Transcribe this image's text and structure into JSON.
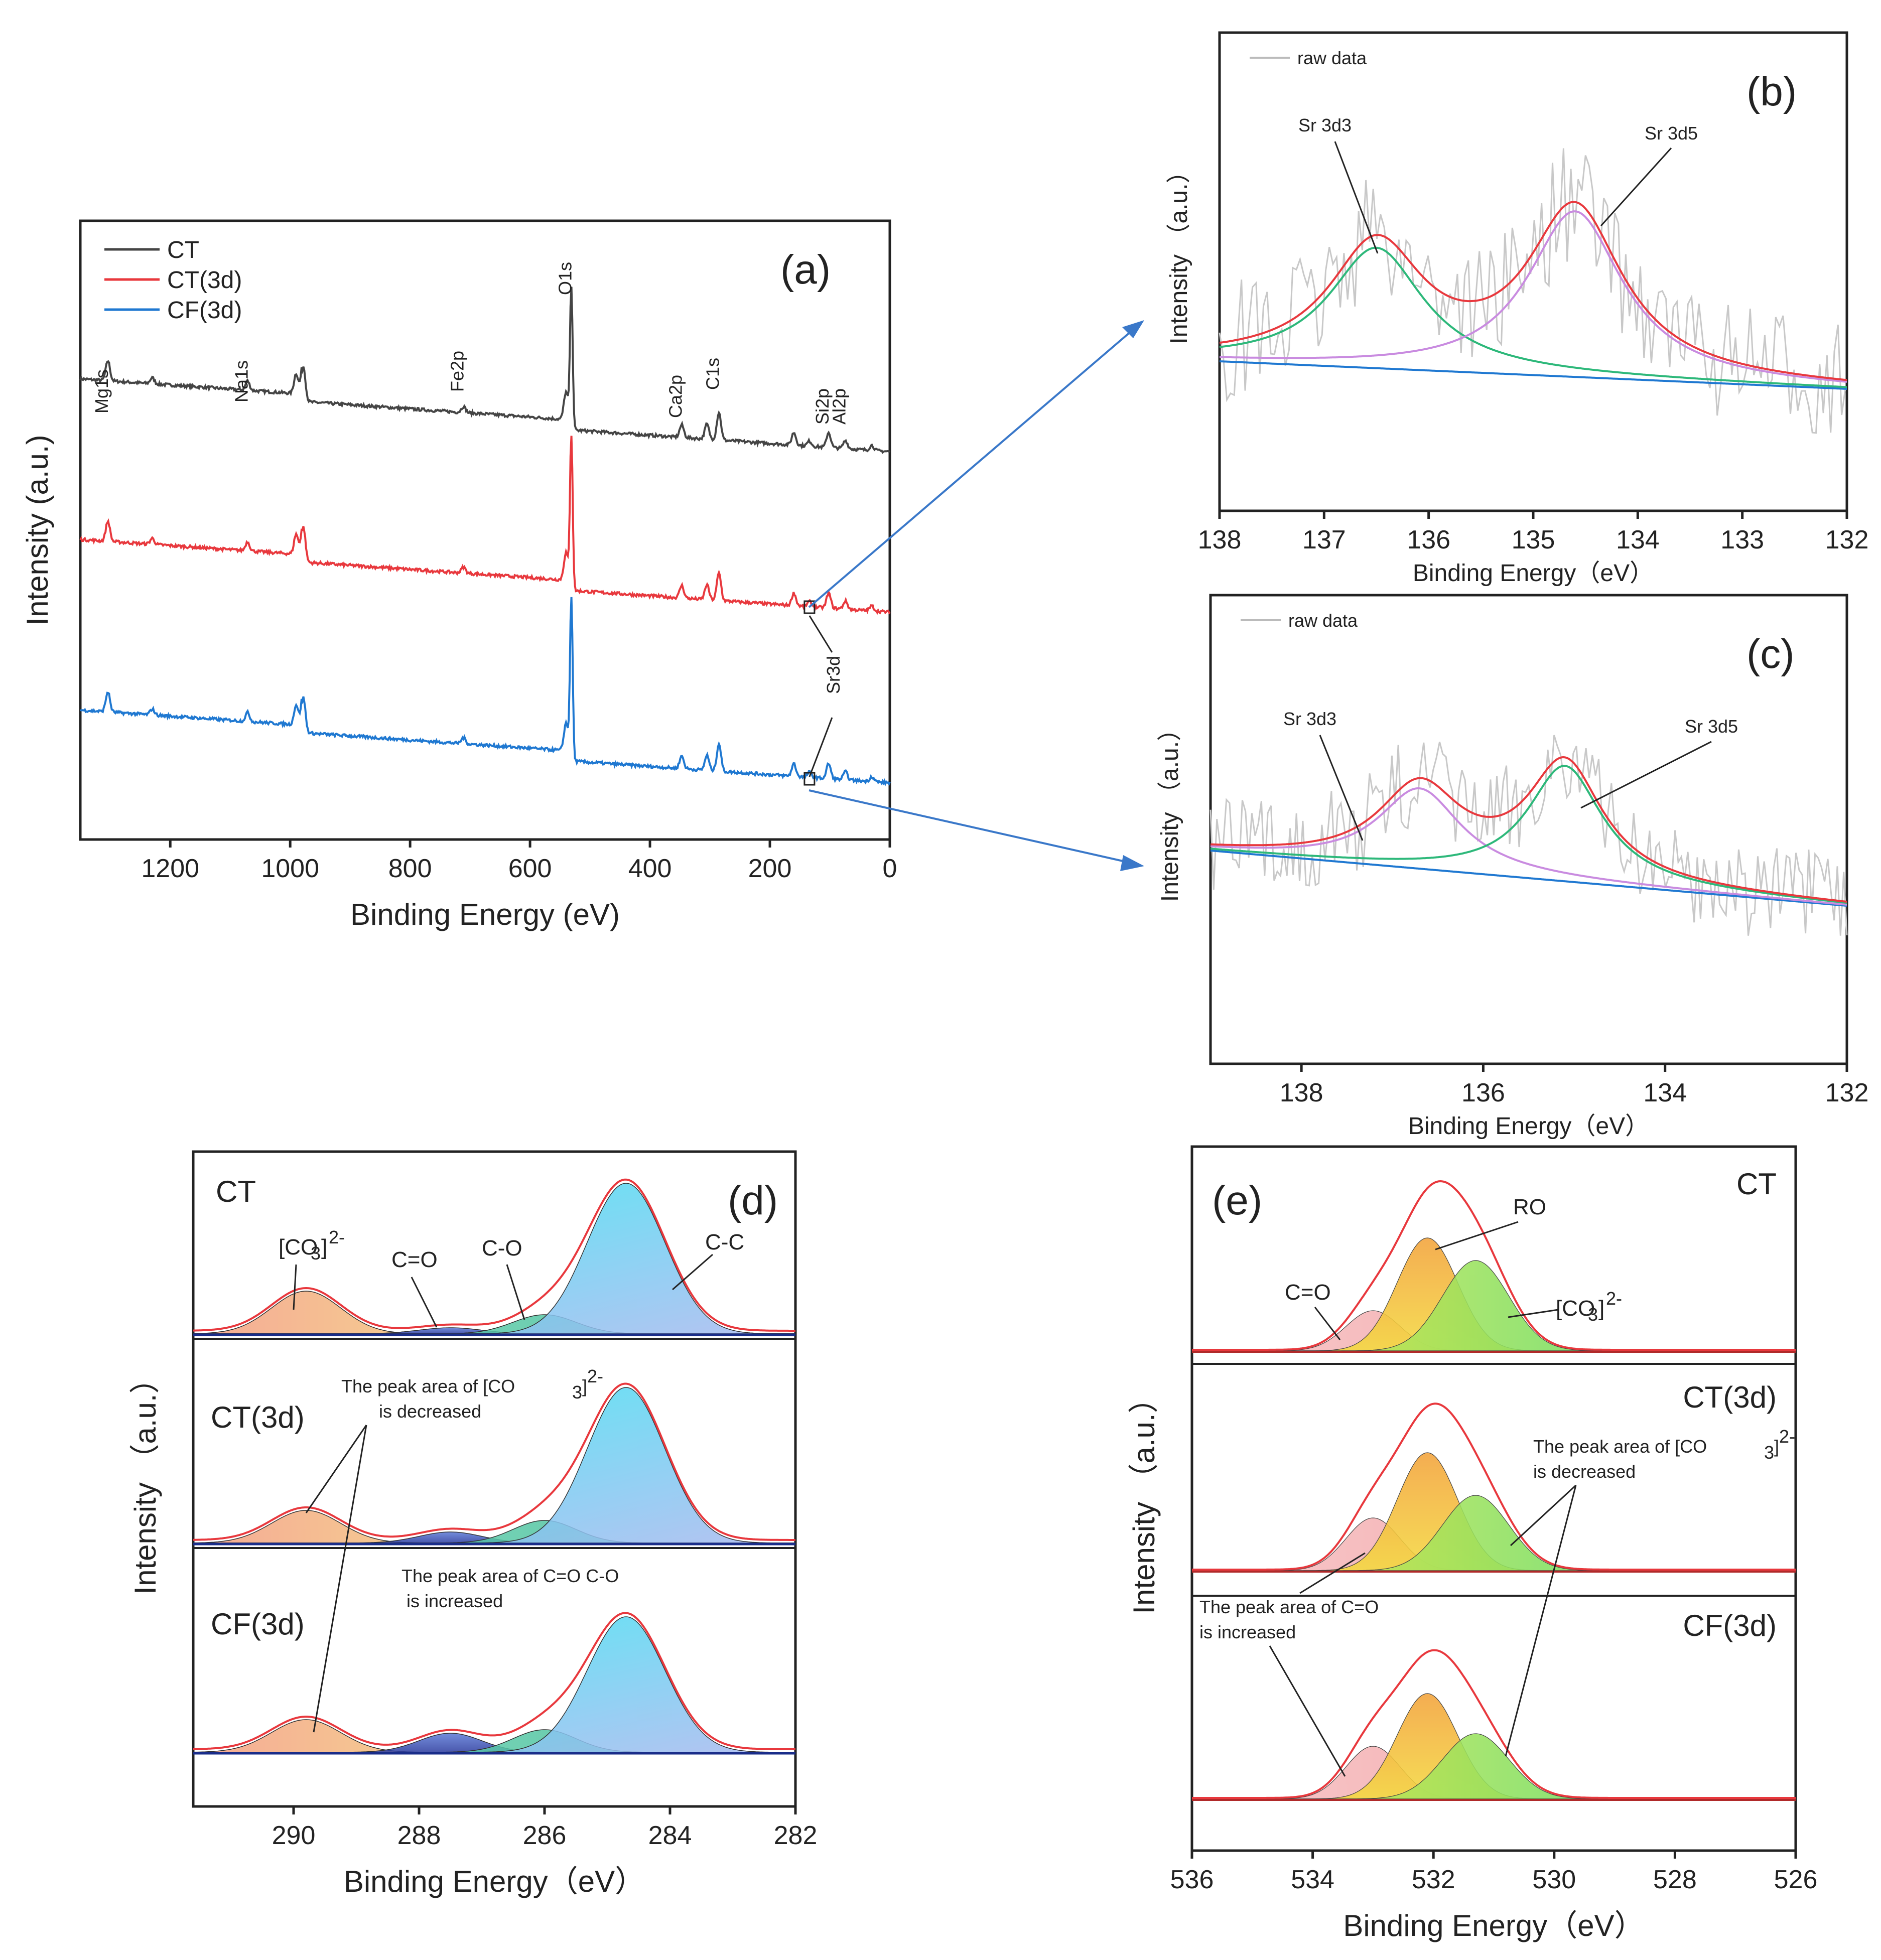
{
  "chart_data": [
    {
      "panel": "a",
      "type": "line",
      "panel_label": "(a)",
      "xlabel": "Binding Energy (eV)",
      "ylabel": "Intensity (a.u.)",
      "xlim": [
        1350,
        0
      ],
      "xticks": [
        1200,
        1000,
        800,
        600,
        400,
        200,
        0
      ],
      "legend": [
        "CT",
        "CT(3d)",
        "CF(3d)"
      ],
      "legend_position": "top-left",
      "colors": [
        "#444444",
        "#e8383d",
        "#1f78d1"
      ],
      "peaks": [
        {
          "label": "Mg1s",
          "x": 1304
        },
        {
          "label": "Na1s",
          "x": 1071
        },
        {
          "label": "Fe2p",
          "x": 711
        },
        {
          "label": "O1s",
          "x": 531
        },
        {
          "label": "Ca2p",
          "x": 347
        },
        {
          "label": "C1s",
          "x": 285
        },
        {
          "label": "Si2p",
          "x": 102
        },
        {
          "label": "Al2p",
          "x": 74
        },
        {
          "label": "Sr3d",
          "x": 134
        }
      ]
    },
    {
      "panel": "b",
      "type": "line",
      "panel_label": "(b)",
      "xlabel": "Binding Energy（eV）",
      "ylabel": "Intensity （a.u.）",
      "xlim": [
        138,
        132
      ],
      "xticks": [
        138,
        137,
        136,
        135,
        134,
        133,
        132
      ],
      "legend": [
        "raw data"
      ],
      "series": [
        {
          "name": "Sr 3d3",
          "center": 136.5,
          "color": "#2db87a"
        },
        {
          "name": "Sr 3d5",
          "center": 134.6,
          "color": "#c98be0"
        },
        {
          "name": "envelope",
          "color": "#e8383d"
        },
        {
          "name": "background",
          "color": "#1f78d1"
        }
      ],
      "annotations": [
        "Sr 3d3",
        "Sr 3d5"
      ]
    },
    {
      "panel": "c",
      "type": "line",
      "panel_label": "(c)",
      "xlabel": "Binding Energy（eV）",
      "ylabel": "Intensity （a.u.）",
      "xlim": [
        139,
        132
      ],
      "xticks": [
        138,
        136,
        134,
        132
      ],
      "legend": [
        "raw data"
      ],
      "series": [
        {
          "name": "Sr 3d3",
          "center": 136.7,
          "color": "#c98be0"
        },
        {
          "name": "Sr 3d5",
          "center": 135.1,
          "color": "#2db87a"
        },
        {
          "name": "envelope",
          "color": "#e8383d"
        },
        {
          "name": "background",
          "color": "#1f78d1"
        }
      ],
      "annotations": [
        "Sr 3d3",
        "Sr 3d5"
      ]
    },
    {
      "panel": "d",
      "type": "area",
      "panel_label": "(d)",
      "xlabel": "Binding Energy（eV）",
      "ylabel": "Intensity （a.u.）",
      "xlim": [
        291.6,
        282
      ],
      "xticks": [
        290,
        288,
        286,
        284,
        282
      ],
      "samples": [
        "CT",
        "CT(3d)",
        "CF(3d)"
      ],
      "components": [
        {
          "name": "[CO3]2-",
          "center": 289.8
        },
        {
          "name": "C=O",
          "center": 287.5
        },
        {
          "name": "C-O",
          "center": 286.0
        },
        {
          "name": "C-C",
          "center": 284.7
        }
      ],
      "annotations": {
        "co3": "[CO",
        "sub3": "3",
        "close": "]",
        "sup": "2-",
        "ceo": "C=O",
        "co": "C-O",
        "cc": "C-C",
        "dec1": "The peak area of [CO",
        "dec2": "is decreased",
        "inc1": "The peak area of C=O  C-O",
        "inc2": "is increased"
      }
    },
    {
      "panel": "e",
      "type": "area",
      "panel_label": "(e)",
      "xlabel": "Binding Energy（eV）",
      "ylabel": "Intensity （a.u.）",
      "xlim": [
        536,
        526
      ],
      "xticks": [
        536,
        534,
        532,
        530,
        528,
        526
      ],
      "samples": [
        "CT",
        "CT(3d)",
        "CF(3d)"
      ],
      "components": [
        {
          "name": "C=O",
          "center": 533.0
        },
        {
          "name": "RO",
          "center": 532.1
        },
        {
          "name": "[CO3]2-",
          "center": 531.3
        }
      ],
      "annotations": {
        "ceo": "C=O",
        "ro": "RO",
        "co3": "[CO",
        "sub3": "3",
        "close": "]",
        "sup": "2-",
        "dec1": "The peak area of [CO",
        "dec2": "is decreased",
        "inc1": "The peak area of C=O",
        "inc2": "is increased"
      }
    }
  ]
}
